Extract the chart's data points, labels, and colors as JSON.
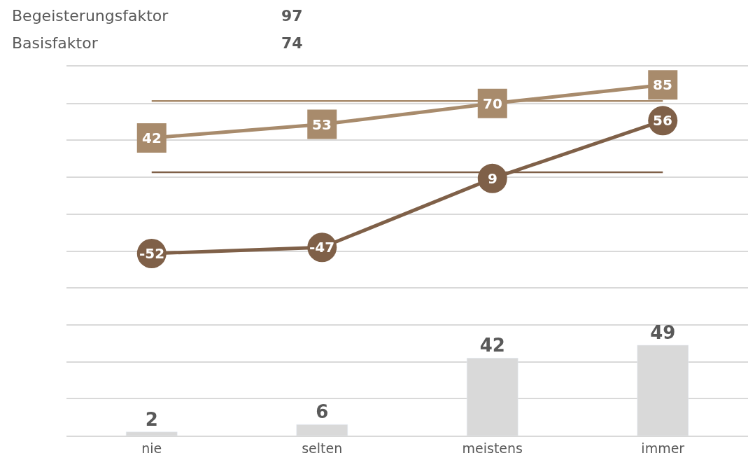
{
  "chart_data": {
    "type": "line",
    "categories": [
      "nie",
      "selten",
      "meistens",
      "immer"
    ],
    "annotations": [
      "Begeisterungsfaktor",
      "97",
      "Basisfaktor",
      "74"
    ],
    "series": [
      {
        "type": "bar",
        "color": "#d9d9d9",
        "values": [
          2,
          6,
          42,
          49
        ]
      },
      {
        "axis": "y2",
        "marker": "square",
        "color": "#a88b6c",
        "values": [
          42,
          53,
          70,
          85
        ]
      },
      {
        "axis": "y2",
        "marker": "circle",
        "color": "#7f6048",
        "values": [
          -52,
          -47,
          9,
          56
        ]
      }
    ],
    "ylim": [
      0,
      200
    ],
    "yticks": [
      {
        "value": 0,
        "label": null
      },
      {
        "value": 20,
        "label": null
      },
      {
        "value": 40,
        "label": null
      },
      {
        "value": 60,
        "label": null
      },
      {
        "value": 80,
        "label": null
      },
      {
        "value": 100,
        "label": null
      },
      {
        "value": 120,
        "label": null
      },
      {
        "value": 140,
        "label": null
      },
      {
        "value": 160,
        "label": null
      },
      {
        "value": 180,
        "label": null
      },
      {
        "value": 200,
        "label": null
      }
    ],
    "y2lim": [
      -200,
      100
    ],
    "ref_lines": [
      {
        "axis": "y2",
        "value": 72,
        "color": "#a88b6c"
      },
      {
        "axis": "y2",
        "value": 14,
        "color": "#7f6048"
      }
    ],
    "data_labels": true,
    "grid": "y",
    "tick_labels": "x",
    "line_style": "solid"
  }
}
